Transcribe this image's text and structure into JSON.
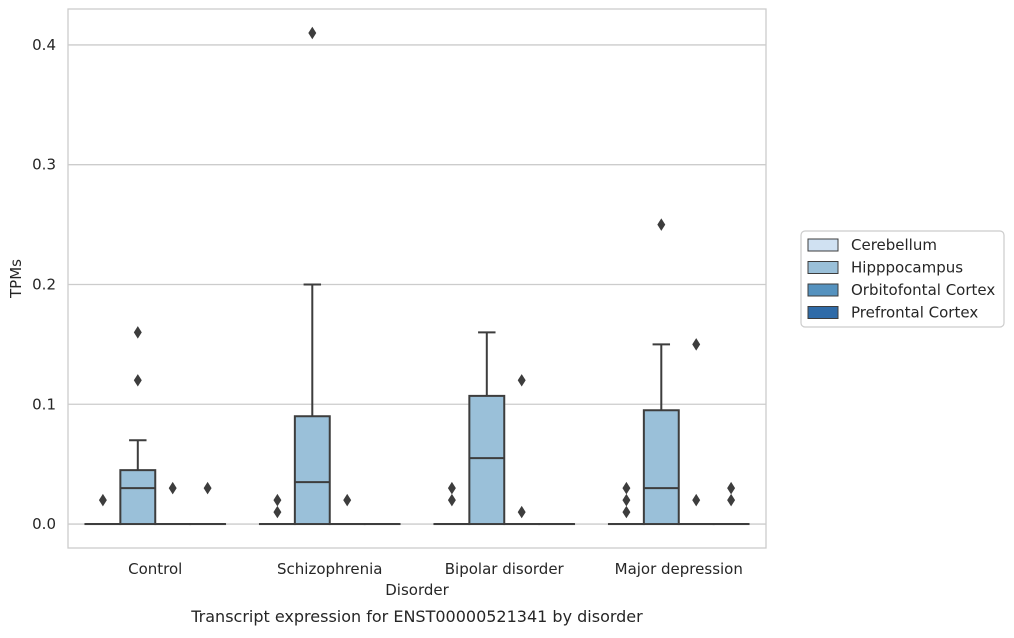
{
  "chart_data": {
    "type": "box",
    "title": "",
    "caption": "Transcript expression for ENST00000521341 by disorder",
    "xlabel": "Disorder",
    "ylabel": "TPMs",
    "ylim": [
      -0.02,
      0.43
    ],
    "yticks": [
      0.0,
      0.1,
      0.2,
      0.3,
      0.4
    ],
    "ytick_labels": [
      "0.0",
      "0.1",
      "0.2",
      "0.3",
      "0.4"
    ],
    "grid": "horizontal",
    "legend_position": "right",
    "categories": [
      "Control",
      "Schizophrenia",
      "Bipolar disorder",
      "Major depression"
    ],
    "series": [
      {
        "name": "Cerebellum",
        "color": "#d0e1f2",
        "boxes": [
          {
            "q1": 0,
            "median": 0,
            "q3": 0,
            "whisker_low": 0,
            "whisker_high": 0,
            "outliers": [
              0.02
            ]
          },
          {
            "q1": 0,
            "median": 0,
            "q3": 0,
            "whisker_low": 0,
            "whisker_high": 0,
            "outliers": [
              0.01,
              0.02
            ]
          },
          {
            "q1": 0,
            "median": 0,
            "q3": 0,
            "whisker_low": 0,
            "whisker_high": 0,
            "outliers": [
              0.02,
              0.03
            ]
          },
          {
            "q1": 0,
            "median": 0,
            "q3": 0,
            "whisker_low": 0,
            "whisker_high": 0,
            "outliers": [
              0.01,
              0.02,
              0.03
            ]
          }
        ]
      },
      {
        "name": "Hipppocampus",
        "color": "#9ac0d9",
        "boxes": [
          {
            "q1": 0,
            "median": 0.03,
            "q3": 0.045,
            "whisker_low": 0,
            "whisker_high": 0.07,
            "outliers": [
              0.12,
              0.16
            ]
          },
          {
            "q1": 0,
            "median": 0.035,
            "q3": 0.09,
            "whisker_low": 0,
            "whisker_high": 0.2,
            "outliers": [
              0.41
            ]
          },
          {
            "q1": 0,
            "median": 0.055,
            "q3": 0.107,
            "whisker_low": 0,
            "whisker_high": 0.16,
            "outliers": []
          },
          {
            "q1": 0,
            "median": 0.03,
            "q3": 0.095,
            "whisker_low": 0,
            "whisker_high": 0.15,
            "outliers": [
              0.25
            ]
          }
        ]
      },
      {
        "name": "Orbitofontal Cortex",
        "color": "#5592bf",
        "boxes": [
          {
            "q1": 0,
            "median": 0,
            "q3": 0,
            "whisker_low": 0,
            "whisker_high": 0,
            "outliers": [
              0.03
            ]
          },
          {
            "q1": 0,
            "median": 0,
            "q3": 0,
            "whisker_low": 0,
            "whisker_high": 0,
            "outliers": [
              0.02
            ]
          },
          {
            "q1": 0,
            "median": 0,
            "q3": 0,
            "whisker_low": 0,
            "whisker_high": 0,
            "outliers": [
              0.01,
              0.12
            ]
          },
          {
            "q1": 0,
            "median": 0,
            "q3": 0,
            "whisker_low": 0,
            "whisker_high": 0,
            "outliers": [
              0.02,
              0.15
            ]
          }
        ]
      },
      {
        "name": "Prefrontal Cortex",
        "color": "#2f6ba8",
        "boxes": [
          {
            "q1": 0,
            "median": 0,
            "q3": 0,
            "whisker_low": 0,
            "whisker_high": 0,
            "outliers": [
              0.03
            ]
          },
          {
            "q1": 0,
            "median": 0,
            "q3": 0,
            "whisker_low": 0,
            "whisker_high": 0,
            "outliers": []
          },
          {
            "q1": 0,
            "median": 0,
            "q3": 0,
            "whisker_low": 0,
            "whisker_high": 0,
            "outliers": []
          },
          {
            "q1": 0,
            "median": 0,
            "q3": 0,
            "whisker_low": 0,
            "whisker_high": 0,
            "outliers": [
              0.02,
              0.03
            ]
          }
        ]
      }
    ]
  }
}
